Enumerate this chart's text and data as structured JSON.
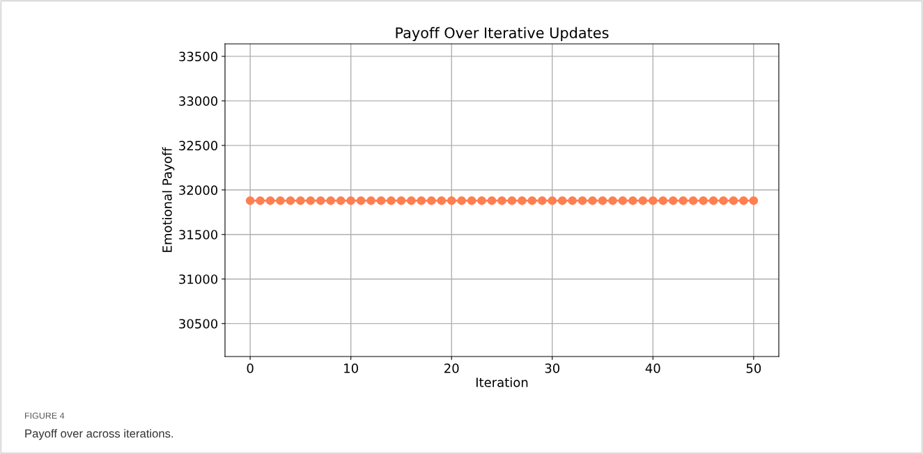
{
  "chart_data": {
    "type": "line",
    "title": "Payoff Over Iterative Updates",
    "xlabel": "Iteration",
    "ylabel": "Emotional Payoff",
    "x": [
      0,
      1,
      2,
      3,
      4,
      5,
      6,
      7,
      8,
      9,
      10,
      11,
      12,
      13,
      14,
      15,
      16,
      17,
      18,
      19,
      20,
      21,
      22,
      23,
      24,
      25,
      26,
      27,
      28,
      29,
      30,
      31,
      32,
      33,
      34,
      35,
      36,
      37,
      38,
      39,
      40,
      41,
      42,
      43,
      44,
      45,
      46,
      47,
      48,
      49,
      50
    ],
    "series": [
      {
        "color": "#ff7f50",
        "values": [
          31880,
          31880,
          31880,
          31880,
          31880,
          31880,
          31880,
          31880,
          31880,
          31880,
          31880,
          31880,
          31880,
          31880,
          31880,
          31880,
          31880,
          31880,
          31880,
          31880,
          31880,
          31880,
          31880,
          31880,
          31880,
          31880,
          31880,
          31880,
          31880,
          31880,
          31880,
          31880,
          31880,
          31880,
          31880,
          31880,
          31880,
          31880,
          31880,
          31880,
          31880,
          31880,
          31880,
          31880,
          31880,
          31880,
          31880,
          31880,
          31880,
          31880,
          31880
        ]
      }
    ],
    "xlim": [
      -2.5,
      52.5
    ],
    "xticks": [
      0,
      10,
      20,
      30,
      40,
      50
    ],
    "ylim": [
      30130,
      33640
    ],
    "yticks": [
      30500,
      31000,
      31500,
      32000,
      32500,
      33000,
      33500
    ],
    "grid": true,
    "marker": "circle",
    "line_style": "solid",
    "annotations": [
      "FIGURE 4",
      "Payoff over across iterations."
    ]
  }
}
